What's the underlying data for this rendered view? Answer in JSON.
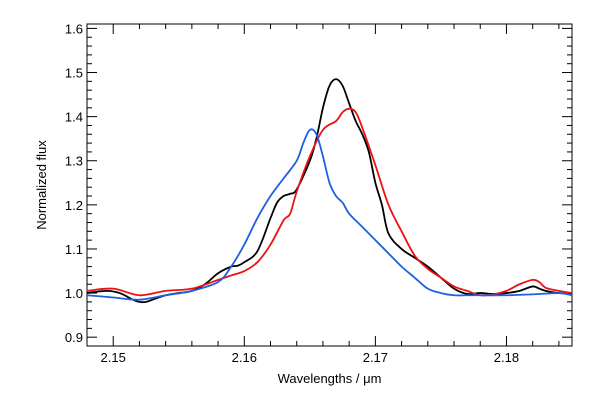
{
  "chart_data": {
    "type": "line",
    "title": "",
    "xlabel": "Wavelengths / μm",
    "ylabel": "Normalized flux",
    "xlim": [
      2.148,
      2.185
    ],
    "ylim": [
      0.88,
      1.61
    ],
    "x_ticks": [
      2.15,
      2.16,
      2.17,
      2.18
    ],
    "x_tick_labels": [
      "2.15",
      "2.16",
      "2.17",
      "2.18"
    ],
    "y_ticks": [
      0.9,
      1.0,
      1.1,
      1.2,
      1.3,
      1.4,
      1.5,
      1.6
    ],
    "y_tick_labels": [
      "0.9",
      "1.0",
      "1.1",
      "1.2",
      "1.3",
      "1.4",
      "1.5",
      "1.6"
    ],
    "grid": false,
    "legend": "none",
    "series": [
      {
        "color": "#000000",
        "x": [
          2.148,
          2.1495,
          2.1505,
          2.1515,
          2.152,
          2.1525,
          2.153,
          2.154,
          2.155,
          2.156,
          2.157,
          2.158,
          2.159,
          2.1595,
          2.16,
          2.161,
          2.162,
          2.1625,
          2.163,
          2.1635,
          2.164,
          2.165,
          2.1655,
          2.166,
          2.1665,
          2.167,
          2.1675,
          2.168,
          2.1685,
          2.169,
          2.1695,
          2.17,
          2.1705,
          2.171,
          2.172,
          2.173,
          2.174,
          2.175,
          2.176,
          2.177,
          2.178,
          2.179,
          2.18,
          2.181,
          2.182,
          2.1825,
          2.183,
          2.184,
          2.185
        ],
        "y": [
          1.0,
          1.005,
          1.0,
          0.985,
          0.98,
          0.98,
          0.985,
          0.995,
          1.0,
          1.005,
          1.02,
          1.045,
          1.06,
          1.062,
          1.07,
          1.095,
          1.17,
          1.205,
          1.22,
          1.225,
          1.235,
          1.3,
          1.35,
          1.42,
          1.47,
          1.485,
          1.47,
          1.43,
          1.39,
          1.36,
          1.32,
          1.25,
          1.2,
          1.135,
          1.1,
          1.08,
          1.06,
          1.035,
          1.01,
          0.998,
          1.0,
          0.998,
          1.0,
          1.005,
          1.015,
          1.01,
          1.005,
          1.0,
          1.0
        ]
      },
      {
        "color": "#ee1111",
        "x": [
          2.148,
          2.15,
          2.152,
          2.154,
          2.156,
          2.158,
          2.159,
          2.16,
          2.161,
          2.162,
          2.163,
          2.1635,
          2.164,
          2.165,
          2.166,
          2.167,
          2.1675,
          2.168,
          2.1685,
          2.169,
          2.17,
          2.171,
          2.172,
          2.173,
          2.174,
          2.175,
          2.176,
          2.177,
          2.178,
          2.179,
          2.18,
          2.181,
          2.182,
          2.1825,
          2.183,
          2.184,
          2.185
        ],
        "y": [
          1.005,
          1.01,
          0.995,
          1.005,
          1.01,
          1.03,
          1.04,
          1.05,
          1.07,
          1.11,
          1.165,
          1.18,
          1.23,
          1.31,
          1.37,
          1.39,
          1.41,
          1.418,
          1.41,
          1.375,
          1.29,
          1.2,
          1.14,
          1.085,
          1.055,
          1.035,
          1.015,
          1.005,
          0.995,
          0.997,
          1.005,
          1.02,
          1.03,
          1.025,
          1.012,
          1.005,
          1.0
        ]
      },
      {
        "color": "#1f5fe0",
        "x": [
          2.148,
          2.15,
          2.152,
          2.154,
          2.156,
          2.158,
          2.159,
          2.16,
          2.161,
          2.162,
          2.163,
          2.164,
          2.1645,
          2.165,
          2.1655,
          2.166,
          2.1665,
          2.167,
          2.1675,
          2.168,
          2.169,
          2.17,
          2.171,
          2.172,
          2.173,
          2.174,
          2.175,
          2.176,
          2.177,
          2.178,
          2.18,
          2.182,
          2.184,
          2.185
        ],
        "y": [
          0.995,
          0.99,
          0.985,
          0.995,
          1.005,
          1.025,
          1.06,
          1.11,
          1.17,
          1.22,
          1.26,
          1.3,
          1.34,
          1.37,
          1.36,
          1.31,
          1.25,
          1.22,
          1.205,
          1.18,
          1.15,
          1.12,
          1.09,
          1.06,
          1.035,
          1.01,
          1.0,
          0.995,
          0.995,
          0.995,
          0.995,
          0.997,
          1.0,
          0.995
        ]
      }
    ]
  }
}
